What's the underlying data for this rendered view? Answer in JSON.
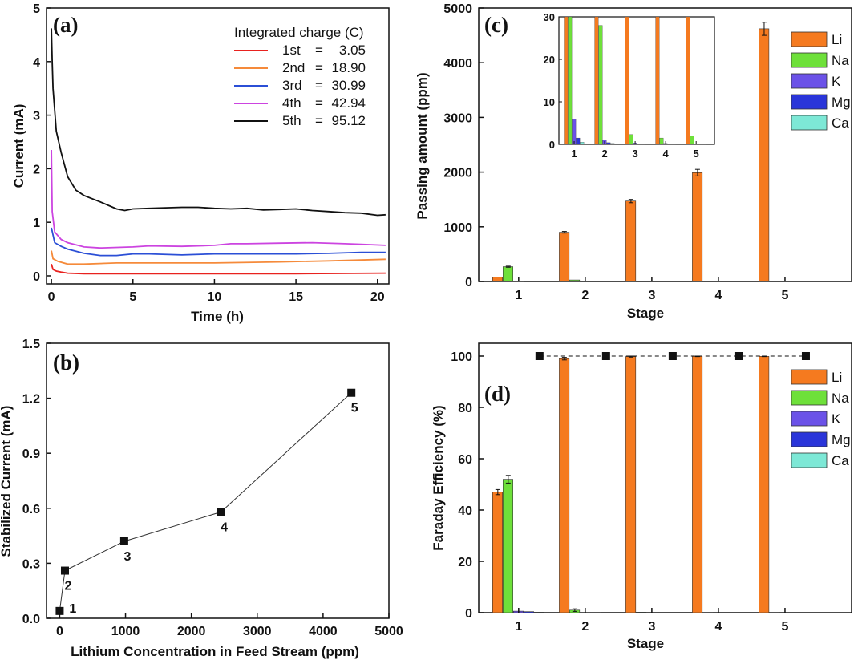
{
  "figure": {
    "panel_a": {
      "letter": "(a)",
      "xlabel": "Time (h)",
      "ylabel": "Current (mA)",
      "legend_title": "Integrated charge (C)"
    },
    "panel_b": {
      "letter": "(b)",
      "xlabel": "Lithium Concentration in Feed Stream (ppm)",
      "ylabel": "Stabilized Current (mA)"
    },
    "panel_c": {
      "letter": "(c)",
      "xlabel": "Stage",
      "ylabel": "Passing amount (ppm)"
    },
    "panel_d": {
      "letter": "(d)",
      "xlabel": "Stage",
      "ylabel": "Faraday Efficiency (%)"
    }
  },
  "chart_data": [
    {
      "panel": "a",
      "type": "line",
      "xlabel": "Time (h)",
      "ylabel": "Current (mA)",
      "xlim": [
        -0.3,
        20.7
      ],
      "ylim": [
        -0.15,
        5
      ],
      "xticks": [
        0,
        5,
        10,
        15,
        20
      ],
      "yticks": [
        0,
        1,
        2,
        3,
        4,
        5
      ],
      "legend_title": "Integrated charge (C)",
      "legend_position": "top-right",
      "series": [
        {
          "name": "1st = 3.05",
          "label_left": "1st",
          "label_right": "3.05",
          "color": "#e8221f",
          "points": [
            [
              0,
              0.22
            ],
            [
              0.1,
              0.12
            ],
            [
              0.3,
              0.09
            ],
            [
              0.6,
              0.07
            ],
            [
              1,
              0.05
            ],
            [
              2,
              0.04
            ],
            [
              5,
              0.04
            ],
            [
              10,
              0.04
            ],
            [
              15,
              0.04
            ],
            [
              20.5,
              0.05
            ]
          ]
        },
        {
          "name": "2nd = 18.90",
          "label_left": "2nd",
          "label_right": "18.90",
          "color": "#f58a3a",
          "points": [
            [
              0,
              0.47
            ],
            [
              0.1,
              0.32
            ],
            [
              0.4,
              0.27
            ],
            [
              1,
              0.22
            ],
            [
              2,
              0.22
            ],
            [
              4,
              0.24
            ],
            [
              7,
              0.24
            ],
            [
              10,
              0.24
            ],
            [
              14,
              0.26
            ],
            [
              17,
              0.28
            ],
            [
              20.5,
              0.31
            ]
          ]
        },
        {
          "name": "3rd = 30.99",
          "label_left": "3rd",
          "label_right": "30.99",
          "color": "#2b4fd6",
          "points": [
            [
              0,
              0.9
            ],
            [
              0.2,
              0.62
            ],
            [
              0.6,
              0.55
            ],
            [
              1,
              0.5
            ],
            [
              2,
              0.42
            ],
            [
              3,
              0.38
            ],
            [
              4,
              0.38
            ],
            [
              5,
              0.41
            ],
            [
              6,
              0.41
            ],
            [
              8,
              0.39
            ],
            [
              10,
              0.41
            ],
            [
              12,
              0.41
            ],
            [
              15,
              0.41
            ],
            [
              17,
              0.42
            ],
            [
              19,
              0.44
            ],
            [
              20.5,
              0.44
            ]
          ]
        },
        {
          "name": "4th = 42.94",
          "label_left": "4th",
          "label_right": "42.94",
          "color": "#cc44e0",
          "points": [
            [
              0,
              2.35
            ],
            [
              0.05,
              1.2
            ],
            [
              0.2,
              0.82
            ],
            [
              0.6,
              0.68
            ],
            [
              1,
              0.62
            ],
            [
              2,
              0.54
            ],
            [
              3,
              0.52
            ],
            [
              5,
              0.54
            ],
            [
              6,
              0.56
            ],
            [
              8,
              0.55
            ],
            [
              10,
              0.57
            ],
            [
              11,
              0.6
            ],
            [
              12,
              0.6
            ],
            [
              14,
              0.61
            ],
            [
              16,
              0.62
            ],
            [
              18,
              0.6
            ],
            [
              19,
              0.59
            ],
            [
              20.5,
              0.57
            ]
          ]
        },
        {
          "name": "5th = 95.12",
          "label_left": "5th",
          "label_right": "95.12",
          "color": "#111111",
          "points": [
            [
              0,
              4.62
            ],
            [
              0.05,
              4.0
            ],
            [
              0.1,
              3.5
            ],
            [
              0.3,
              2.7
            ],
            [
              0.6,
              2.3
            ],
            [
              1,
              1.85
            ],
            [
              1.5,
              1.6
            ],
            [
              2,
              1.5
            ],
            [
              3,
              1.38
            ],
            [
              4,
              1.25
            ],
            [
              4.5,
              1.22
            ],
            [
              5,
              1.25
            ],
            [
              6,
              1.26
            ],
            [
              7,
              1.27
            ],
            [
              8,
              1.28
            ],
            [
              9,
              1.28
            ],
            [
              10,
              1.26
            ],
            [
              11,
              1.25
            ],
            [
              12,
              1.26
            ],
            [
              13,
              1.23
            ],
            [
              14,
              1.24
            ],
            [
              15,
              1.25
            ],
            [
              16,
              1.22
            ],
            [
              17,
              1.2
            ],
            [
              18,
              1.18
            ],
            [
              19,
              1.17
            ],
            [
              20,
              1.13
            ],
            [
              20.5,
              1.14
            ]
          ]
        }
      ]
    },
    {
      "panel": "b",
      "type": "scatter",
      "xlabel": "Lithium Concentration in Feed Stream (ppm)",
      "ylabel": "Stabilized Current (mA)",
      "xlim": [
        -200,
        5000
      ],
      "ylim": [
        0,
        1.5
      ],
      "xticks": [
        0,
        1000,
        2000,
        3000,
        4000,
        5000
      ],
      "yticks": [
        0.0,
        0.3,
        0.6,
        0.9,
        1.2,
        1.5
      ],
      "connected": true,
      "points": [
        {
          "x": 0,
          "y": 0.04,
          "label": "1"
        },
        {
          "x": 80,
          "y": 0.26,
          "label": "2"
        },
        {
          "x": 980,
          "y": 0.42,
          "label": "3"
        },
        {
          "x": 2450,
          "y": 0.58,
          "label": "4"
        },
        {
          "x": 4430,
          "y": 1.23,
          "label": "5"
        }
      ]
    },
    {
      "panel": "c",
      "type": "bar",
      "xlabel": "Stage",
      "ylabel": "Passing amount (ppm)",
      "categories": [
        "1",
        "2",
        "3",
        "4",
        "5"
      ],
      "ylim": [
        0,
        5000
      ],
      "yticks": [
        0,
        1000,
        2000,
        3000,
        4000,
        5000
      ],
      "legend_position": "top-right",
      "series": [
        {
          "name": "Li",
          "color": "#f57a1f",
          "values": [
            80,
            900,
            1470,
            1990,
            4620
          ],
          "errors": [
            0,
            15,
            30,
            60,
            120
          ]
        },
        {
          "name": "Na",
          "color": "#6ee03a",
          "values": [
            270,
            28,
            2.3,
            1.5,
            2
          ],
          "errors": [
            10,
            0,
            0,
            0,
            0
          ]
        },
        {
          "name": "K",
          "color": "#6b52e8",
          "values": [
            6,
            1,
            0.3,
            0.2,
            0.1
          ],
          "errors": [
            0,
            0,
            0,
            0,
            0
          ]
        },
        {
          "name": "Mg",
          "color": "#2a35d9",
          "values": [
            1.5,
            0.4,
            0.1,
            0.1,
            0.1
          ],
          "errors": [
            0,
            0,
            0,
            0,
            0
          ]
        },
        {
          "name": "Ca",
          "color": "#7de8d6",
          "values": [
            0.5,
            0.2,
            0.1,
            0.1,
            0.1
          ],
          "errors": [
            0,
            0,
            0,
            0,
            0
          ]
        }
      ],
      "inset": {
        "ylim": [
          0,
          30
        ],
        "yticks": [
          0,
          10,
          20,
          30
        ],
        "categories": [
          "1",
          "2",
          "3",
          "4",
          "5"
        ]
      }
    },
    {
      "panel": "d",
      "type": "bar",
      "xlabel": "Stage",
      "ylabel": "Faraday Efficiency (%)",
      "categories": [
        "1",
        "2",
        "3",
        "4",
        "5"
      ],
      "ylim": [
        0,
        105
      ],
      "yticks": [
        0,
        20,
        40,
        60,
        80,
        100
      ],
      "legend_position": "top-right",
      "series": [
        {
          "name": "Li",
          "color": "#f57a1f",
          "values": [
            47,
            99,
            99.8,
            99.9,
            99.9
          ],
          "errors": [
            1,
            0.5,
            0.2,
            0.1,
            0.1
          ]
        },
        {
          "name": "Na",
          "color": "#6ee03a",
          "values": [
            52,
            1,
            0.2,
            0.1,
            0.1
          ],
          "errors": [
            1.5,
            0.5,
            0,
            0,
            0
          ]
        },
        {
          "name": "K",
          "color": "#6b52e8",
          "values": [
            0.6,
            0.1,
            0,
            0,
            0
          ],
          "errors": [
            0,
            0,
            0,
            0,
            0
          ]
        },
        {
          "name": "Mg",
          "color": "#2a35d9",
          "values": [
            0.4,
            0.1,
            0,
            0,
            0
          ],
          "errors": [
            0,
            0,
            0,
            0,
            0
          ]
        },
        {
          "name": "Ca",
          "color": "#7de8d6",
          "values": [
            0.2,
            0.05,
            0,
            0,
            0
          ],
          "errors": [
            0,
            0,
            0,
            0,
            0
          ]
        }
      ],
      "total_markers": {
        "values": [
          100,
          100,
          100,
          100,
          100
        ],
        "style": "dashed"
      }
    }
  ]
}
